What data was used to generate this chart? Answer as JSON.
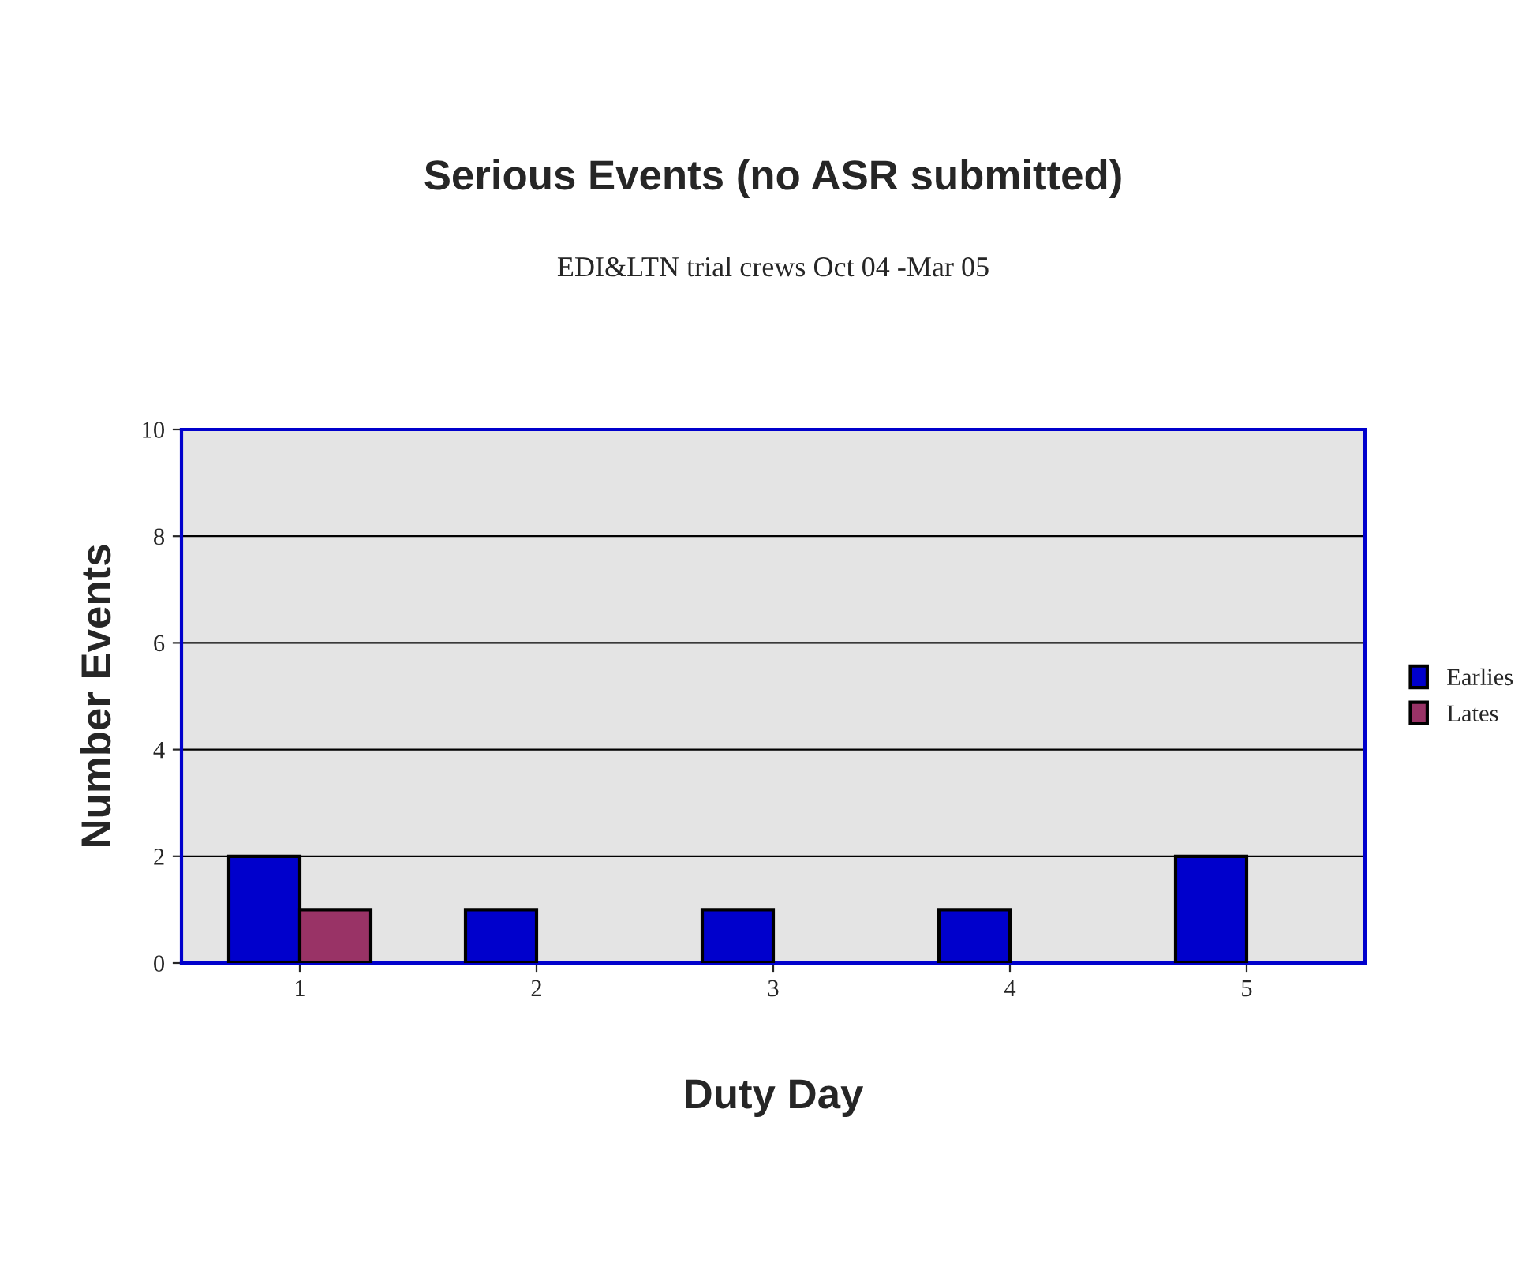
{
  "chart_data": {
    "type": "bar",
    "title": "Serious Events (no ASR submitted)",
    "subtitle": "EDI&LTN trial crews Oct 04 -Mar 05",
    "xlabel": "Duty Day",
    "ylabel": "Number Events",
    "categories": [
      "1",
      "2",
      "3",
      "4",
      "5"
    ],
    "series": [
      {
        "name": "Earlies",
        "color": "#0000cc",
        "values": [
          2,
          1,
          1,
          1,
          2
        ]
      },
      {
        "name": "Lates",
        "color": "#993366",
        "values": [
          1,
          null,
          null,
          null,
          null
        ]
      }
    ],
    "ylim": [
      0,
      10
    ],
    "yticks": [
      0,
      2,
      4,
      6,
      8,
      10
    ],
    "grid": "y",
    "legend": "right"
  }
}
